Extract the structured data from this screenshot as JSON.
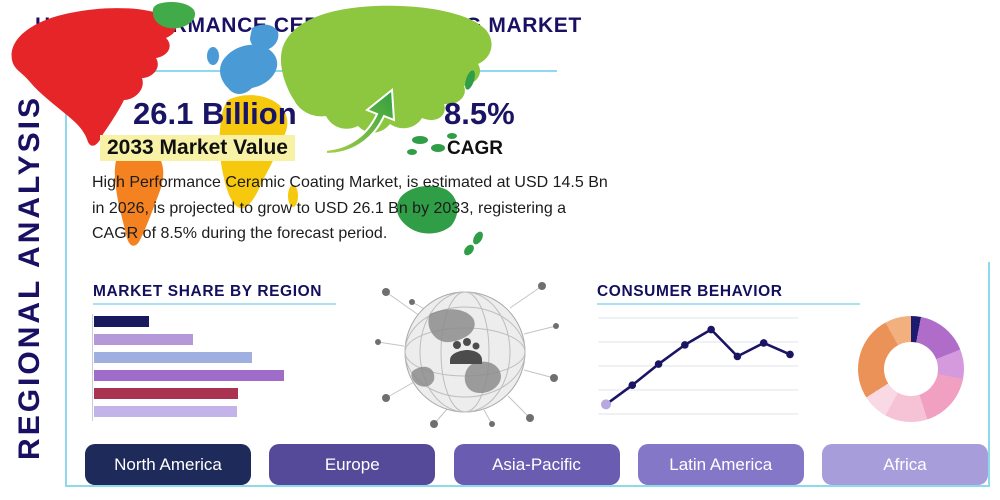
{
  "page": {
    "title": "HIGH PERFORMANCE CERAMIC COATING MARKET",
    "side_label": "REGIONAL ANALYSIS"
  },
  "stats": {
    "market_value": "26.1 Billion",
    "market_value_label": "2033 Market Value",
    "cagr_value": "8.5%",
    "cagr_label": "CAGR",
    "description": "High Performance Ceramic Coating Market, is estimated at USD 14.5 Bn in 2026, is projected to grow to USD 26.1 Bn by 2033, registering a CAGR of 8.5% during the forecast period."
  },
  "chart_data": [
    {
      "type": "bar",
      "title": "MARKET SHARE BY REGION",
      "orientation": "horizontal",
      "values": [
        29,
        52,
        83,
        100,
        76,
        75
      ],
      "colors": [
        "#191a5e",
        "#b598d8",
        "#9fb0e0",
        "#a06cc9",
        "#aa3352",
        "#c4b3e8"
      ],
      "value_unit": "relative-percent-of-longest-bar",
      "grid": false
    },
    {
      "type": "line",
      "title": "CONSUMER BEHAVIOR",
      "values": [
        10,
        30,
        52,
        72,
        88,
        60,
        74,
        62
      ],
      "ylim": [
        0,
        100
      ],
      "line_color": "#1a1464",
      "start_marker_color": "#b9a7e0",
      "grid": "horizontal"
    },
    {
      "type": "pie",
      "variant": "donut",
      "segments": [
        {
          "color": "#1b1b6f",
          "value": 3
        },
        {
          "color": "#b06cc9",
          "value": 16
        },
        {
          "color": "#d49add",
          "value": 9
        },
        {
          "color": "#f2a0c2",
          "value": 17
        },
        {
          "color": "#f6c3d6",
          "value": 13
        },
        {
          "color": "#f9d9e4",
          "value": 8
        },
        {
          "color": "#ea9257",
          "value": 26
        },
        {
          "color": "#f2b07e",
          "value": 8
        }
      ]
    }
  ],
  "regions": [
    "North America",
    "Europe",
    "Asia-Pacific",
    "Latin America",
    "Africa"
  ],
  "region_colors": [
    "#1e2a5a",
    "#55499a",
    "#6a5cb0",
    "#8577c8",
    "#a89ddb"
  ],
  "map_colors": {
    "north_america": "#e62529",
    "greenland": "#42ab49",
    "south_america": "#f58220",
    "europe": "#4a9bd5",
    "africa": "#f6c80e",
    "asia": "#8dc63f",
    "islands": "#2f9e47",
    "australia": "#2f9e47"
  },
  "theme": {
    "navy": "#1a1464",
    "card_border": "#8ed9ec",
    "highlight": "#f8f2a6",
    "arrow_green_light": "#a8d048",
    "arrow_green_dark": "#2f9e3f"
  }
}
